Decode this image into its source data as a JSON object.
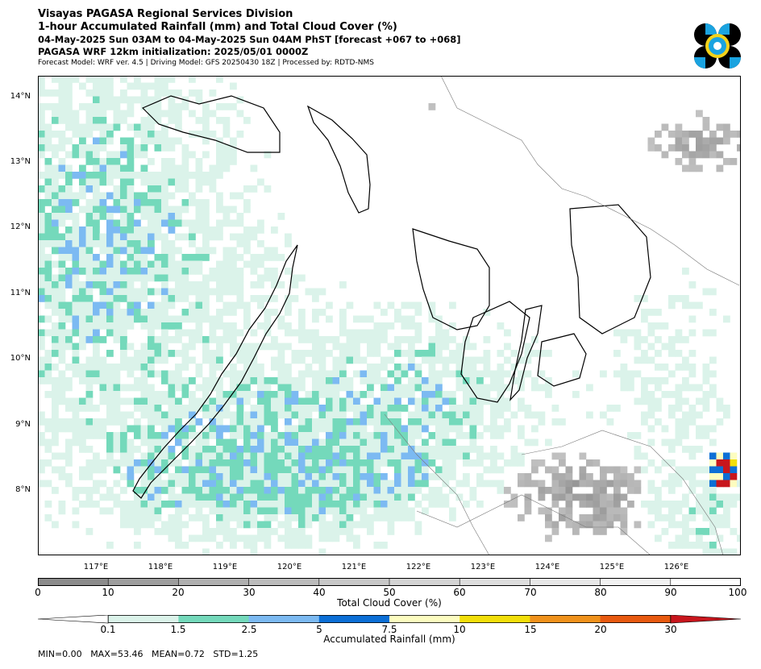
{
  "header": {
    "org": "Visayas PAGASA Regional Services Division",
    "product": "1-hour Accumulated Rainfall (mm) and Total Cloud Cover (%)",
    "valid": "04-May-2025 Sun 03AM to 04-May-2025 Sun 04AM PhST [forecast +067 to +068]",
    "init": "PAGASA WRF 12km initialization: 2025/05/01 0000Z",
    "meta": "Forecast Model: WRF ver. 4.5 | Driving Model: GFS 20250430 18Z | Processed by: RDTD-NMS"
  },
  "map": {
    "lat_labels": [
      "14°N",
      "13°N",
      "12°N",
      "11°N",
      "10°N",
      "9°N",
      "8°N"
    ],
    "lon_labels": [
      "117°E",
      "118°E",
      "119°E",
      "120°E",
      "121°E",
      "122°E",
      "123°E",
      "124°E",
      "125°E",
      "126°E"
    ],
    "cloud_colormap": "greys",
    "rain_colormap": "teal-blue-yellow-red"
  },
  "cloud_bar": {
    "ticks": [
      "0",
      "10",
      "20",
      "30",
      "40",
      "50",
      "60",
      "70",
      "80",
      "90",
      "100"
    ],
    "label": "Total Cloud Cover (%)",
    "colors": [
      "#8c8c8c",
      "#9e9e9e",
      "#b0b0b0",
      "#bcbcbc",
      "#c8c8c8",
      "#d4d4d4",
      "#dedede",
      "#e8e8e8",
      "#f2f2f2",
      "#ffffff"
    ]
  },
  "rain_bar": {
    "ticks": [
      "0.1",
      "1.5",
      "2.5",
      "5",
      "7.5",
      "10",
      "15",
      "20",
      "30"
    ],
    "label": "Accumulated Rainfall (mm)",
    "under_color": "#ffffff",
    "over_color": "#c8161d",
    "colors": [
      "#dbf3ea",
      "#74d9bb",
      "#7cbaf2",
      "#0c6fd6",
      "#fdfdc0",
      "#f2df0a",
      "#f0921c",
      "#e85a10",
      "#c8161d"
    ]
  },
  "stats": {
    "min": "MIN=0.00",
    "max": "MAX=53.46",
    "mean": "MEAN=0.72",
    "std": "STD=1.25"
  }
}
